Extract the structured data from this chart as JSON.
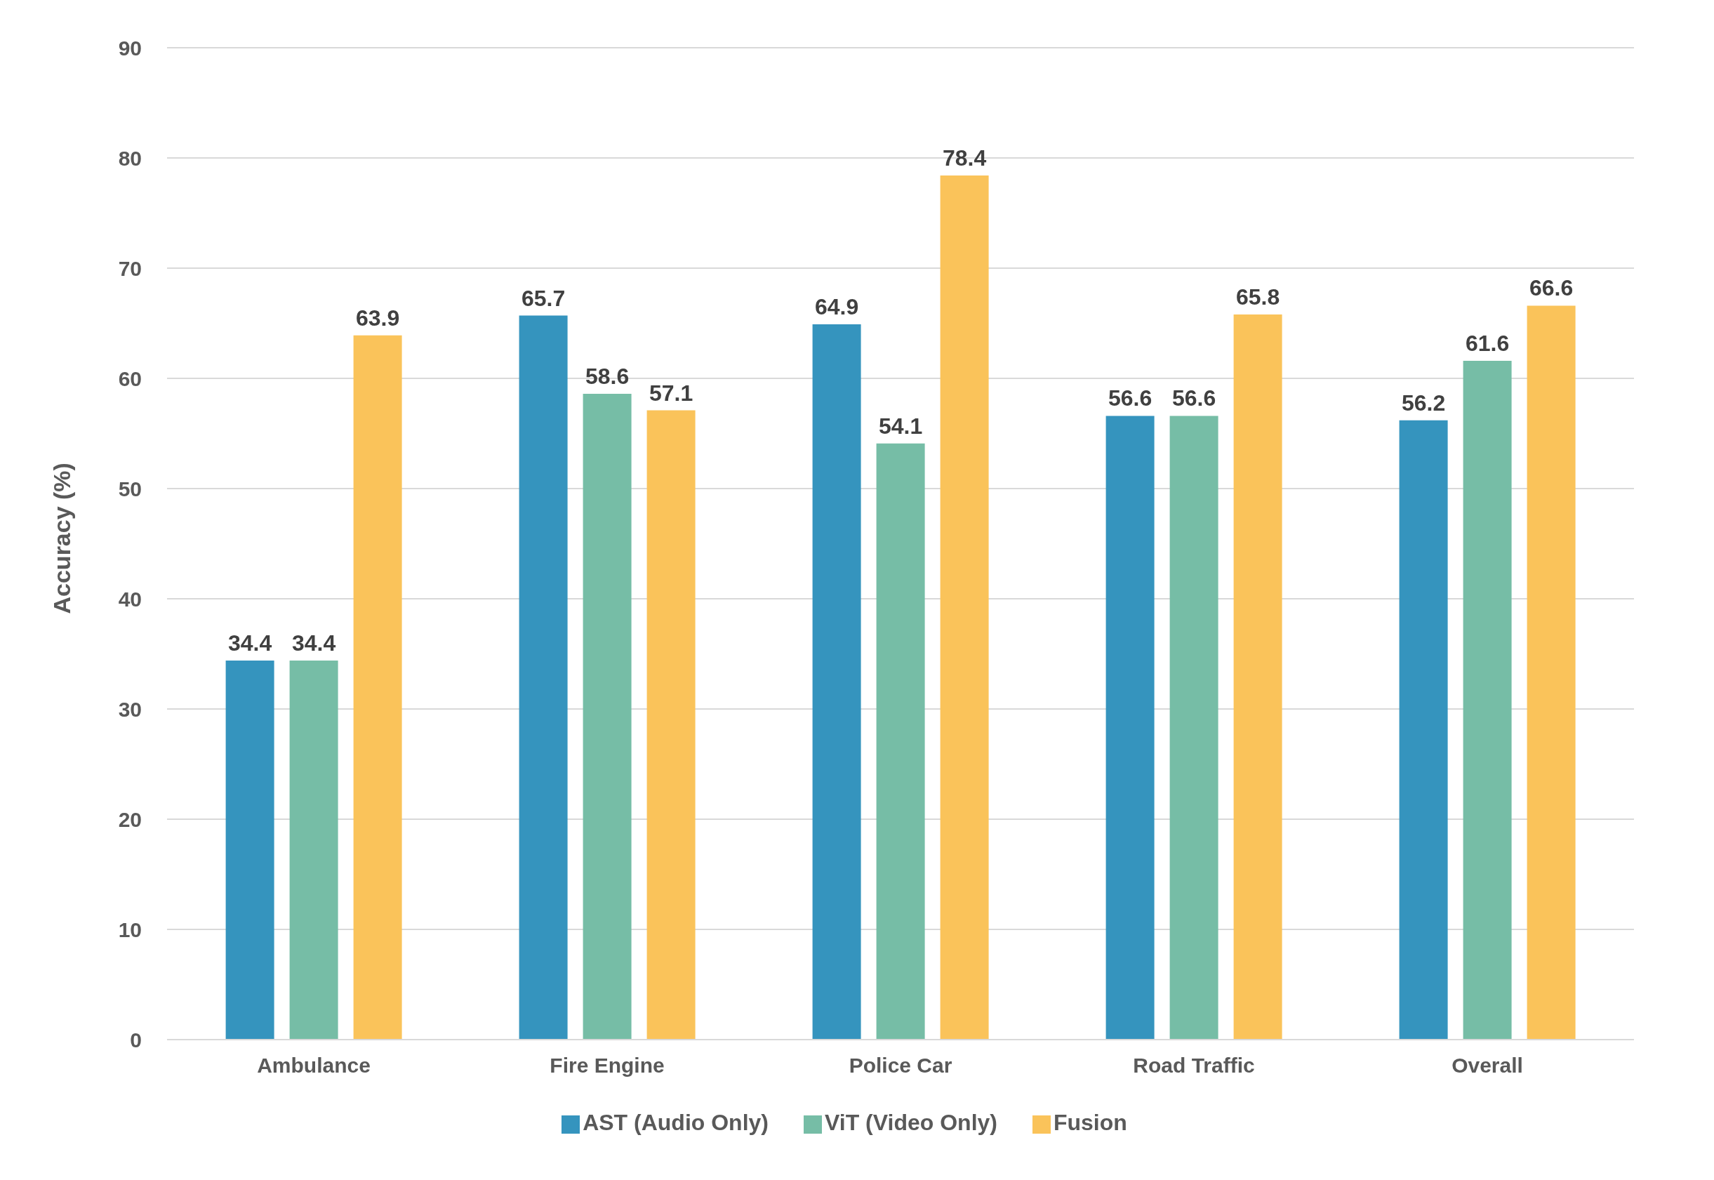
{
  "chart_data": {
    "type": "bar",
    "ylabel": "Accuracy (%)",
    "categories": [
      "Ambulance",
      "Fire Engine",
      "Police Car",
      "Road Traffic",
      "Overall"
    ],
    "series": [
      {
        "name": "AST (Audio Only)",
        "color": "#3594be",
        "values": [
          34.4,
          65.7,
          64.9,
          56.6,
          56.2
        ]
      },
      {
        "name": "ViT (Video Only)",
        "color": "#76bda6",
        "values": [
          34.4,
          58.6,
          54.1,
          56.6,
          61.6
        ]
      },
      {
        "name": "Fusion",
        "color": "#fac35a",
        "values": [
          63.9,
          57.1,
          78.4,
          65.8,
          66.6
        ]
      }
    ],
    "ylim": [
      0,
      90
    ],
    "yticks": [
      0,
      10,
      20,
      30,
      40,
      50,
      60,
      70,
      80,
      90
    ],
    "grid": "y",
    "legend": "bottom",
    "data_labels": true
  }
}
